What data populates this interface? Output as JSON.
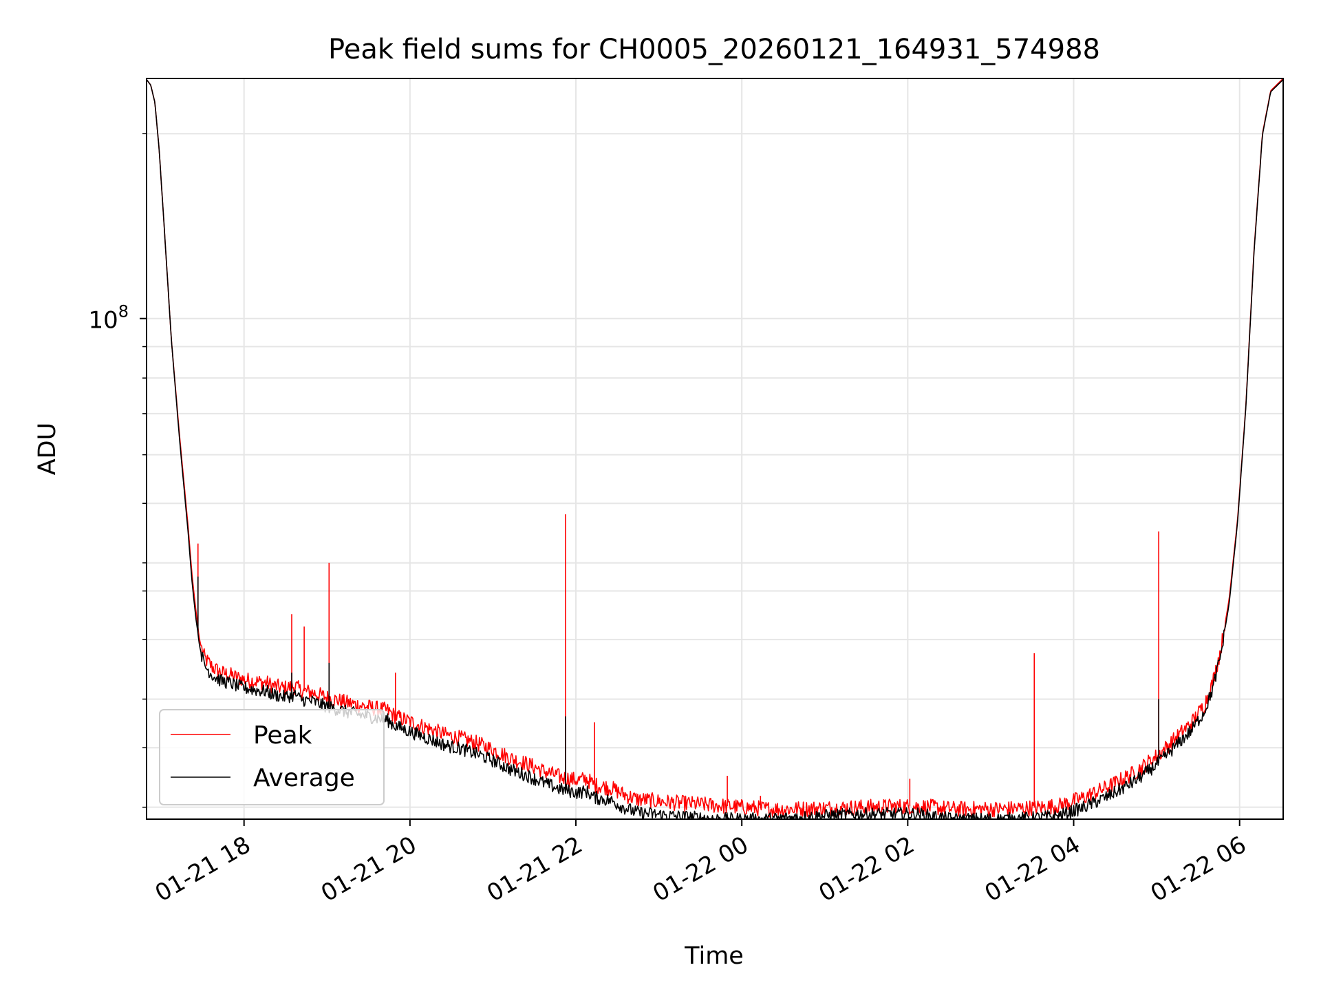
{
  "chart_data": {
    "type": "line",
    "title": "Peak field sums for CH0005_20260121_164931_574988",
    "xlabel": "Time",
    "ylabel": "ADU",
    "yscale": "log",
    "x_unit": "hours after 2026-01-21 16:49:31",
    "xlim": [
      0,
      13.7
    ],
    "ylim": [
      15300000,
      246000000
    ],
    "x_ticks": [
      {
        "x": 1.175,
        "label": "01-21 18"
      },
      {
        "x": 3.175,
        "label": "01-21 20"
      },
      {
        "x": 5.175,
        "label": "01-21 22"
      },
      {
        "x": 7.175,
        "label": "01-22 00"
      },
      {
        "x": 9.175,
        "label": "01-22 02"
      },
      {
        "x": 11.175,
        "label": "01-22 04"
      },
      {
        "x": 13.175,
        "label": "01-22 06"
      }
    ],
    "y_major_ticks": [
      {
        "y": 100000000,
        "base": "10",
        "exp": "8"
      }
    ],
    "y_minor_ticks": [
      16000000,
      20000000,
      24000000,
      30000000,
      36000000,
      40000000,
      50000000,
      60000000,
      70000000,
      80000000,
      90000000,
      200000000
    ],
    "grid": true,
    "legend": {
      "position": "lower-left",
      "entries": [
        "Peak",
        "Average"
      ]
    },
    "series": [
      {
        "name": "Peak",
        "color": "#ff0000",
        "x": [
          0,
          0.05,
          0.1,
          0.15,
          0.2,
          0.3,
          0.4,
          0.5,
          0.55,
          0.6,
          0.62,
          0.63,
          0.65,
          0.7,
          0.8,
          0.9,
          1.0,
          1.1,
          1.2,
          1.35,
          1.45,
          1.5,
          1.65,
          1.8,
          1.85,
          2.0,
          2.2,
          2.4,
          2.6,
          2.9,
          3.0,
          3.2,
          3.4,
          3.6,
          3.8,
          4.0,
          4.2,
          4.4,
          4.6,
          4.8,
          5.0,
          5.2,
          5.3,
          5.4,
          5.6,
          5.75,
          5.9,
          6.1,
          6.3,
          6.6,
          6.9,
          7.2,
          7.5,
          7.8,
          8.2,
          8.6,
          9.0,
          9.3,
          9.5,
          9.7,
          10.0,
          10.3,
          10.6,
          10.8,
          11.0,
          11.3,
          11.6,
          11.9,
          12.0,
          12.2,
          12.4,
          12.6,
          12.75,
          12.85,
          12.95,
          13.05,
          13.15,
          13.25,
          13.35,
          13.45,
          13.55,
          13.7
        ],
        "values": [
          245000000,
          240000000,
          225000000,
          190000000,
          150000000,
          92000000,
          64000000,
          46000000,
          38000000,
          33000000,
          31500000,
          30500000,
          29500000,
          28000000,
          27000000,
          26500000,
          26300000,
          26000000,
          25800000,
          25600000,
          25500000,
          25300000,
          25000000,
          25200000,
          24800000,
          24600000,
          24100000,
          23700000,
          23400000,
          23000000,
          22500000,
          22000000,
          21500000,
          21000000,
          20700000,
          20300000,
          19800000,
          19200000,
          18800000,
          18300000,
          17900000,
          17700000,
          17800000,
          17400000,
          17200000,
          16800000,
          16500000,
          16400000,
          16300000,
          16200000,
          16100000,
          16000000,
          15900000,
          15900000,
          15950000,
          16000000,
          16050000,
          16050000,
          16000000,
          15900000,
          15900000,
          15900000,
          15950000,
          16000000,
          16100000,
          16600000,
          17300000,
          18200000,
          18600000,
          19500000,
          20700000,
          22000000,
          23500000,
          25500000,
          29000000,
          35000000,
          47000000,
          72000000,
          130000000,
          200000000,
          235000000,
          246000000
        ]
      },
      {
        "name": "Average",
        "color": "#000000",
        "x": [
          0,
          0.05,
          0.1,
          0.15,
          0.2,
          0.3,
          0.4,
          0.5,
          0.55,
          0.6,
          0.62,
          0.63,
          0.65,
          0.7,
          0.8,
          0.9,
          1.0,
          1.1,
          1.2,
          1.35,
          1.45,
          1.5,
          1.65,
          1.8,
          1.85,
          2.0,
          2.2,
          2.4,
          2.6,
          2.9,
          3.0,
          3.2,
          3.4,
          3.6,
          3.8,
          4.0,
          4.2,
          4.4,
          4.6,
          4.8,
          5.0,
          5.2,
          5.3,
          5.4,
          5.6,
          5.75,
          5.9,
          6.1,
          6.3,
          6.6,
          6.9,
          7.2,
          7.5,
          7.8,
          8.2,
          8.6,
          9.0,
          9.3,
          9.5,
          9.7,
          10.0,
          10.3,
          10.6,
          10.8,
          11.0,
          11.3,
          11.6,
          11.9,
          12.0,
          12.2,
          12.4,
          12.6,
          12.75,
          12.85,
          12.95,
          13.05,
          13.15,
          13.25,
          13.35,
          13.45,
          13.55,
          13.7
        ],
        "values": [
          245000000,
          240000000,
          225000000,
          190000000,
          150000000,
          92000000,
          63000000,
          45000000,
          37000000,
          32000000,
          30800000,
          29800000,
          28800000,
          27200000,
          26200000,
          25700000,
          25500000,
          25200000,
          25000000,
          24800000,
          24700000,
          24500000,
          24200000,
          24400000,
          24000000,
          23800000,
          23300000,
          22900000,
          22600000,
          22200000,
          21700000,
          21200000,
          20700000,
          20200000,
          19900000,
          19500000,
          19000000,
          18400000,
          18000000,
          17500000,
          17100000,
          16900000,
          17000000,
          16600000,
          16400000,
          16000000,
          15700000,
          15600000,
          15500000,
          15400000,
          15300000,
          15300000,
          15300000,
          15400000,
          15500000,
          15600000,
          15600000,
          15600000,
          15450000,
          15300000,
          15300000,
          15300000,
          15350000,
          15400000,
          15500000,
          16000000,
          16700000,
          17600000,
          18000000,
          18900000,
          20100000,
          21400000,
          22900000,
          24900000,
          28400000,
          34400000,
          46500000,
          71500000,
          129000000,
          199000000,
          234000000,
          245000000
        ]
      }
    ],
    "peak_spikes": [
      {
        "x": 0.62,
        "value": 43000000
      },
      {
        "x": 1.75,
        "value": 33000000
      },
      {
        "x": 1.9,
        "value": 31500000
      },
      {
        "x": 2.2,
        "value": 40000000
      },
      {
        "x": 3.0,
        "value": 26500000
      },
      {
        "x": 5.05,
        "value": 48000000
      },
      {
        "x": 5.4,
        "value": 22000000
      },
      {
        "x": 7.0,
        "value": 18000000
      },
      {
        "x": 7.4,
        "value": 16700000
      },
      {
        "x": 9.2,
        "value": 17800000
      },
      {
        "x": 10.7,
        "value": 28500000
      },
      {
        "x": 12.2,
        "value": 45000000
      }
    ],
    "avg_spikes": [
      {
        "x": 0.62,
        "value": 38000000
      },
      {
        "x": 1.75,
        "value": 26500000
      },
      {
        "x": 2.2,
        "value": 27500000
      },
      {
        "x": 5.05,
        "value": 22500000
      },
      {
        "x": 12.2,
        "value": 24000000
      }
    ]
  }
}
